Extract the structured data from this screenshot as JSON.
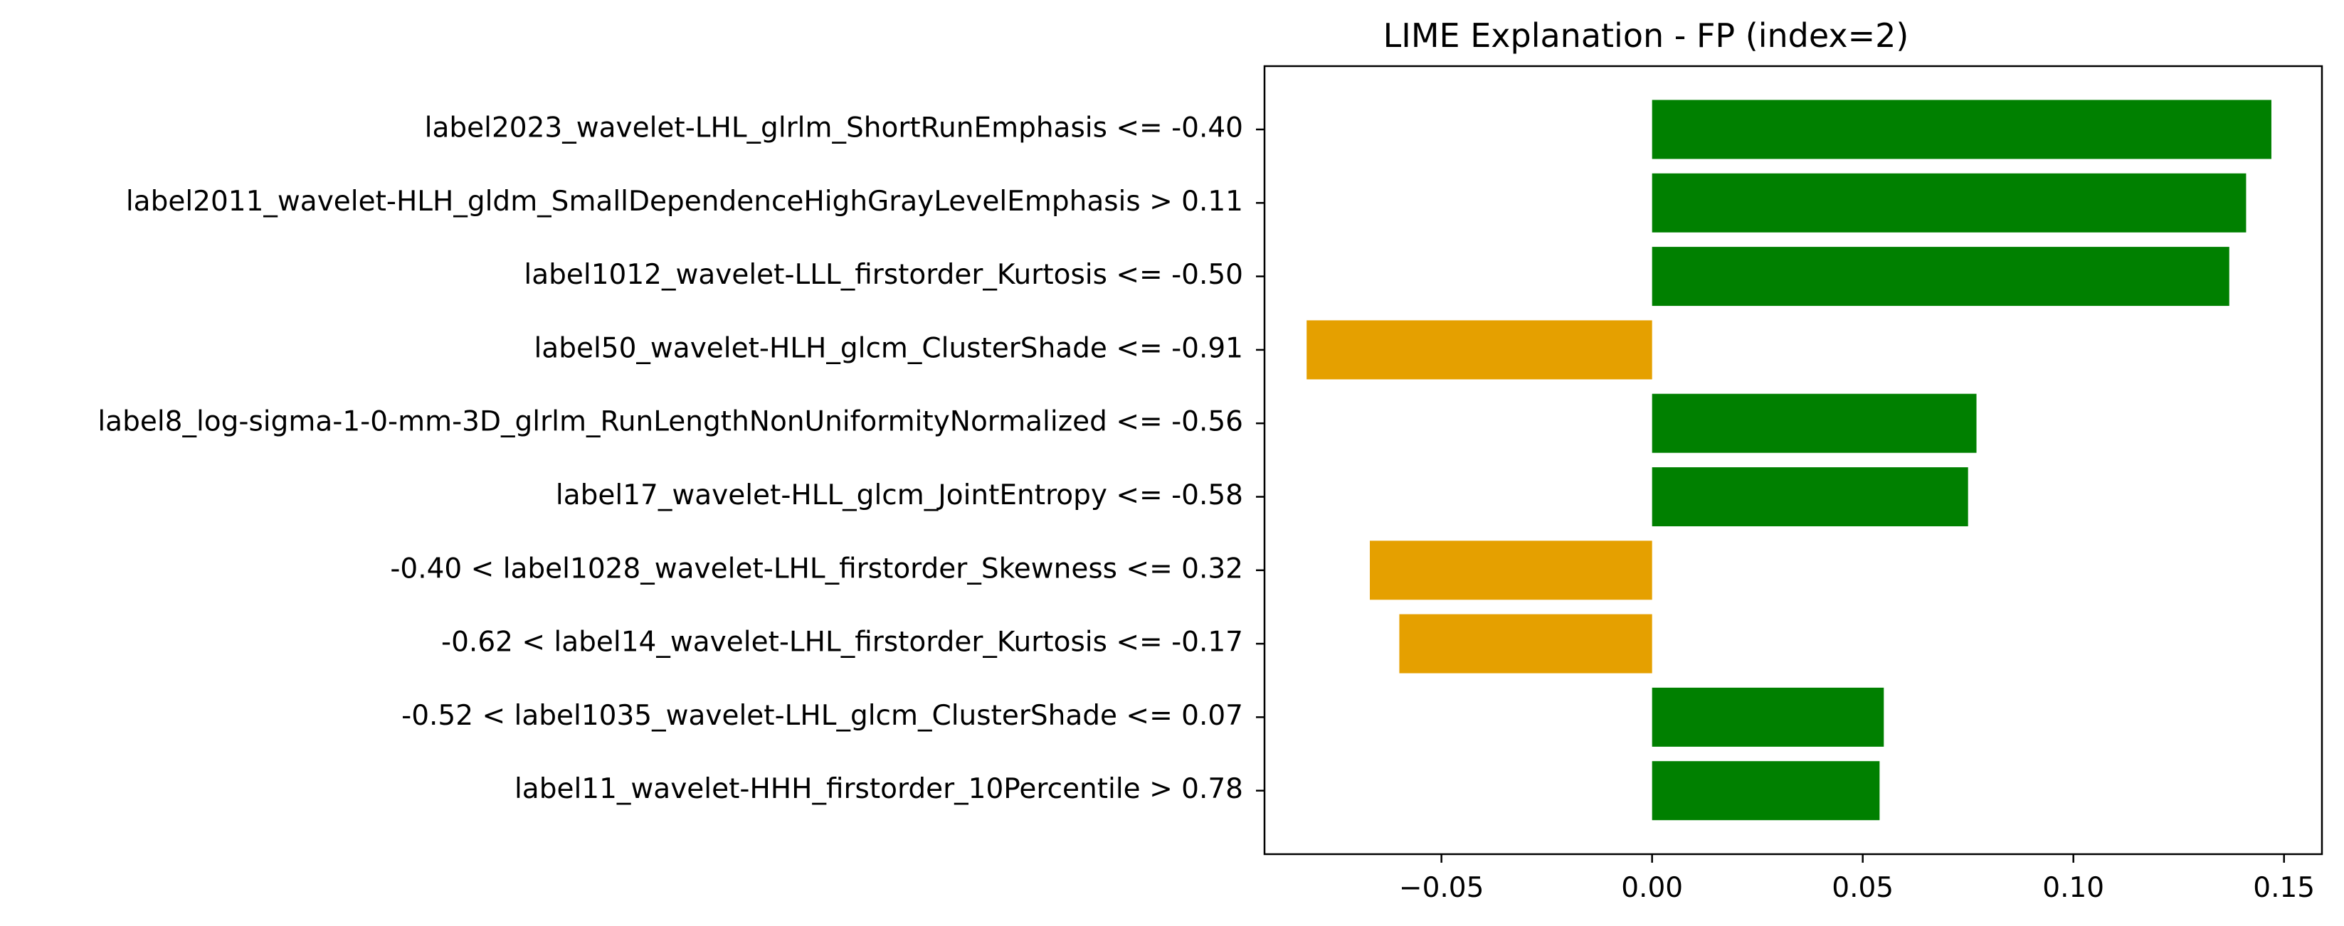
{
  "chart_data": {
    "type": "bar",
    "orientation": "horizontal",
    "title": "LIME Explanation - FP (index=2)",
    "xlabel": "",
    "ylabel": "",
    "xlim": [
      -0.092,
      0.159
    ],
    "xticks": [
      -0.05,
      0.0,
      0.05,
      0.1,
      0.15
    ],
    "xtick_labels": [
      "−0.05",
      "0.00",
      "0.05",
      "0.10",
      "0.15"
    ],
    "grid": false,
    "colors": {
      "positive": "#008000",
      "negative": "#e5a000"
    },
    "categories": [
      "label2023_wavelet-LHL_glrlm_ShortRunEmphasis <= -0.40",
      "label2011_wavelet-HLH_gldm_SmallDependenceHighGrayLevelEmphasis > 0.11",
      "label1012_wavelet-LLL_firstorder_Kurtosis <= -0.50",
      "label50_wavelet-HLH_glcm_ClusterShade <= -0.91",
      "label8_log-sigma-1-0-mm-3D_glrlm_RunLengthNonUniformityNormalized <= -0.56",
      "label17_wavelet-HLL_glcm_JointEntropy <= -0.58",
      "-0.40 < label1028_wavelet-LHL_firstorder_Skewness <= 0.32",
      "-0.62 < label14_wavelet-LHL_firstorder_Kurtosis <= -0.17",
      "-0.52 < label1035_wavelet-LHL_glcm_ClusterShade <= 0.07",
      "label11_wavelet-HHH_firstorder_10Percentile > 0.78"
    ],
    "values": [
      0.147,
      0.141,
      0.137,
      -0.082,
      0.077,
      0.075,
      -0.067,
      -0.06,
      0.055,
      0.054
    ]
  }
}
